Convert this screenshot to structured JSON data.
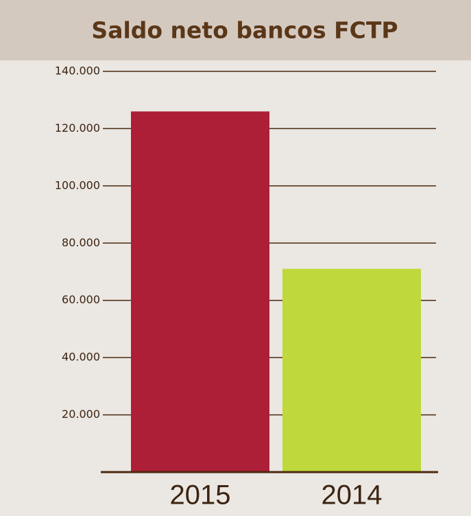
{
  "chart_data": {
    "type": "bar",
    "title": "Saldo neto bancos FCTP",
    "categories": [
      "2015",
      "2014"
    ],
    "values": [
      126000,
      71000
    ],
    "colors": [
      "#ad1e37",
      "#bfd83b"
    ],
    "ylim": [
      0,
      140000
    ],
    "yticks": [
      {
        "value": 20000,
        "label": "20.000"
      },
      {
        "value": 40000,
        "label": "40.000"
      },
      {
        "value": 60000,
        "label": "60.000"
      },
      {
        "value": 80000,
        "label": "80.000"
      },
      {
        "value": 100000,
        "label": "100.000"
      },
      {
        "value": 120000,
        "label": "120.000"
      },
      {
        "value": 140000,
        "label": "140.000"
      }
    ],
    "grid": true
  }
}
